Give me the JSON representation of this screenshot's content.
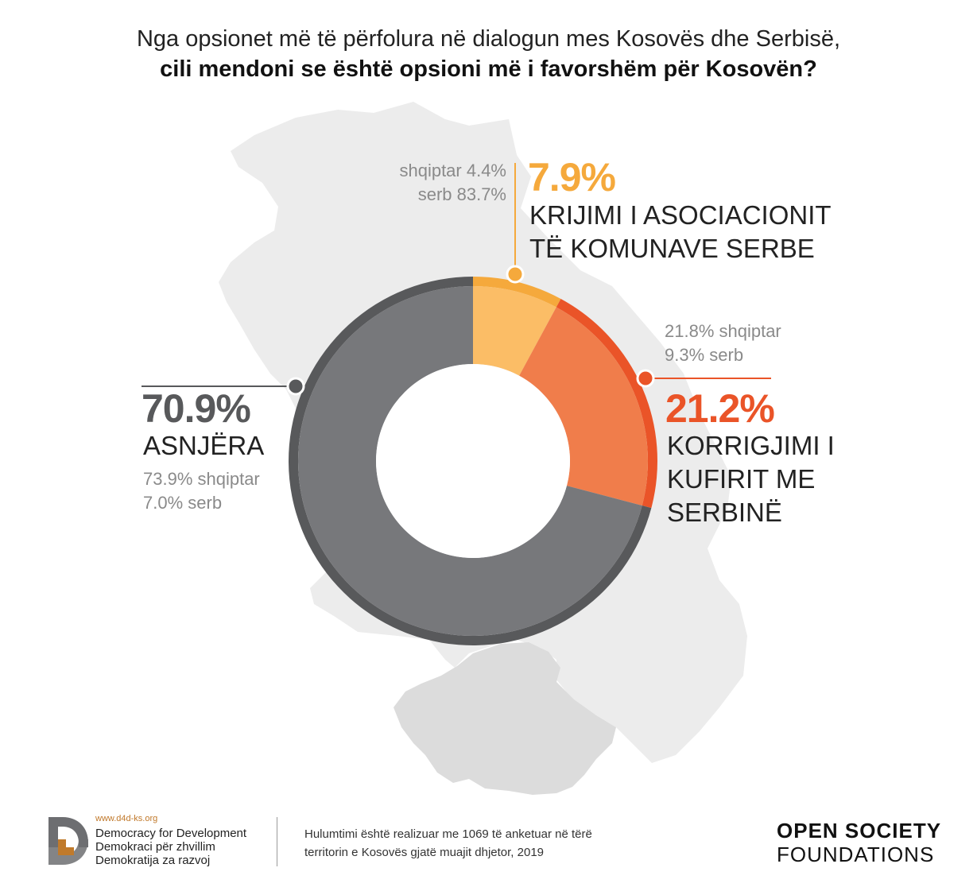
{
  "title": {
    "line1": "Nga opsionet më të përfolura në dialogun mes Kosovës dhe Serbisë,",
    "line2": "cili mendoni se është opsioni më i favorshëm për Kosovën?"
  },
  "chart_data": {
    "type": "pie",
    "slices": [
      {
        "label": "KRIJIMI I ASOCIACIONIT TË KOMUNAVE SERBE",
        "caption_lines": [
          "KRIJIMI I ASOCIACIONIT",
          "TË KOMUNAVE SERBE"
        ],
        "value": 7.9,
        "value_text": "7.9%",
        "sub_lines": [
          "shqiptar 4.4%",
          "serb 83.7%"
        ],
        "color": "#f5a93c",
        "fill": "#fbbd66"
      },
      {
        "label": "KORRIGJIMI I KUFIRIT ME SERBINË",
        "caption_lines": [
          "KORRIGJIMI I",
          "KUFIRIT ME",
          "SERBINË"
        ],
        "value": 21.2,
        "value_text": "21.2%",
        "sub_lines": [
          "21.8% shqiptar",
          "9.3% serb"
        ],
        "color": "#ea5428",
        "fill": "#f07d4b"
      },
      {
        "label": "ASNJËRA",
        "caption_lines": [
          "ASNJËRA"
        ],
        "value": 70.9,
        "value_text": "70.9%",
        "sub_lines": [
          "73.9% shqiptar",
          "7.0% serb"
        ],
        "color": "#58595b",
        "fill": "#77787b"
      }
    ]
  },
  "footer": {
    "org_url": "www.d4d-ks.org",
    "org_names": [
      "Democracy for Development",
      "Demokraci për zhvillim",
      "Demokratija za razvoj"
    ],
    "note_lines": [
      "Hulumtimi është realizuar me 1069 të anketuar në tërë",
      "territorin e Kosovës gjatë muajit dhjetor, 2019"
    ],
    "sponsor_line1": "OPEN SOCIETY",
    "sponsor_line2": "FOUNDATIONS"
  },
  "colors": {
    "map_light": "#ececec",
    "map_kosovo": "#dcdcdc",
    "logo_brown": "#c07a2b",
    "logo_gray": "#6d6e71"
  }
}
